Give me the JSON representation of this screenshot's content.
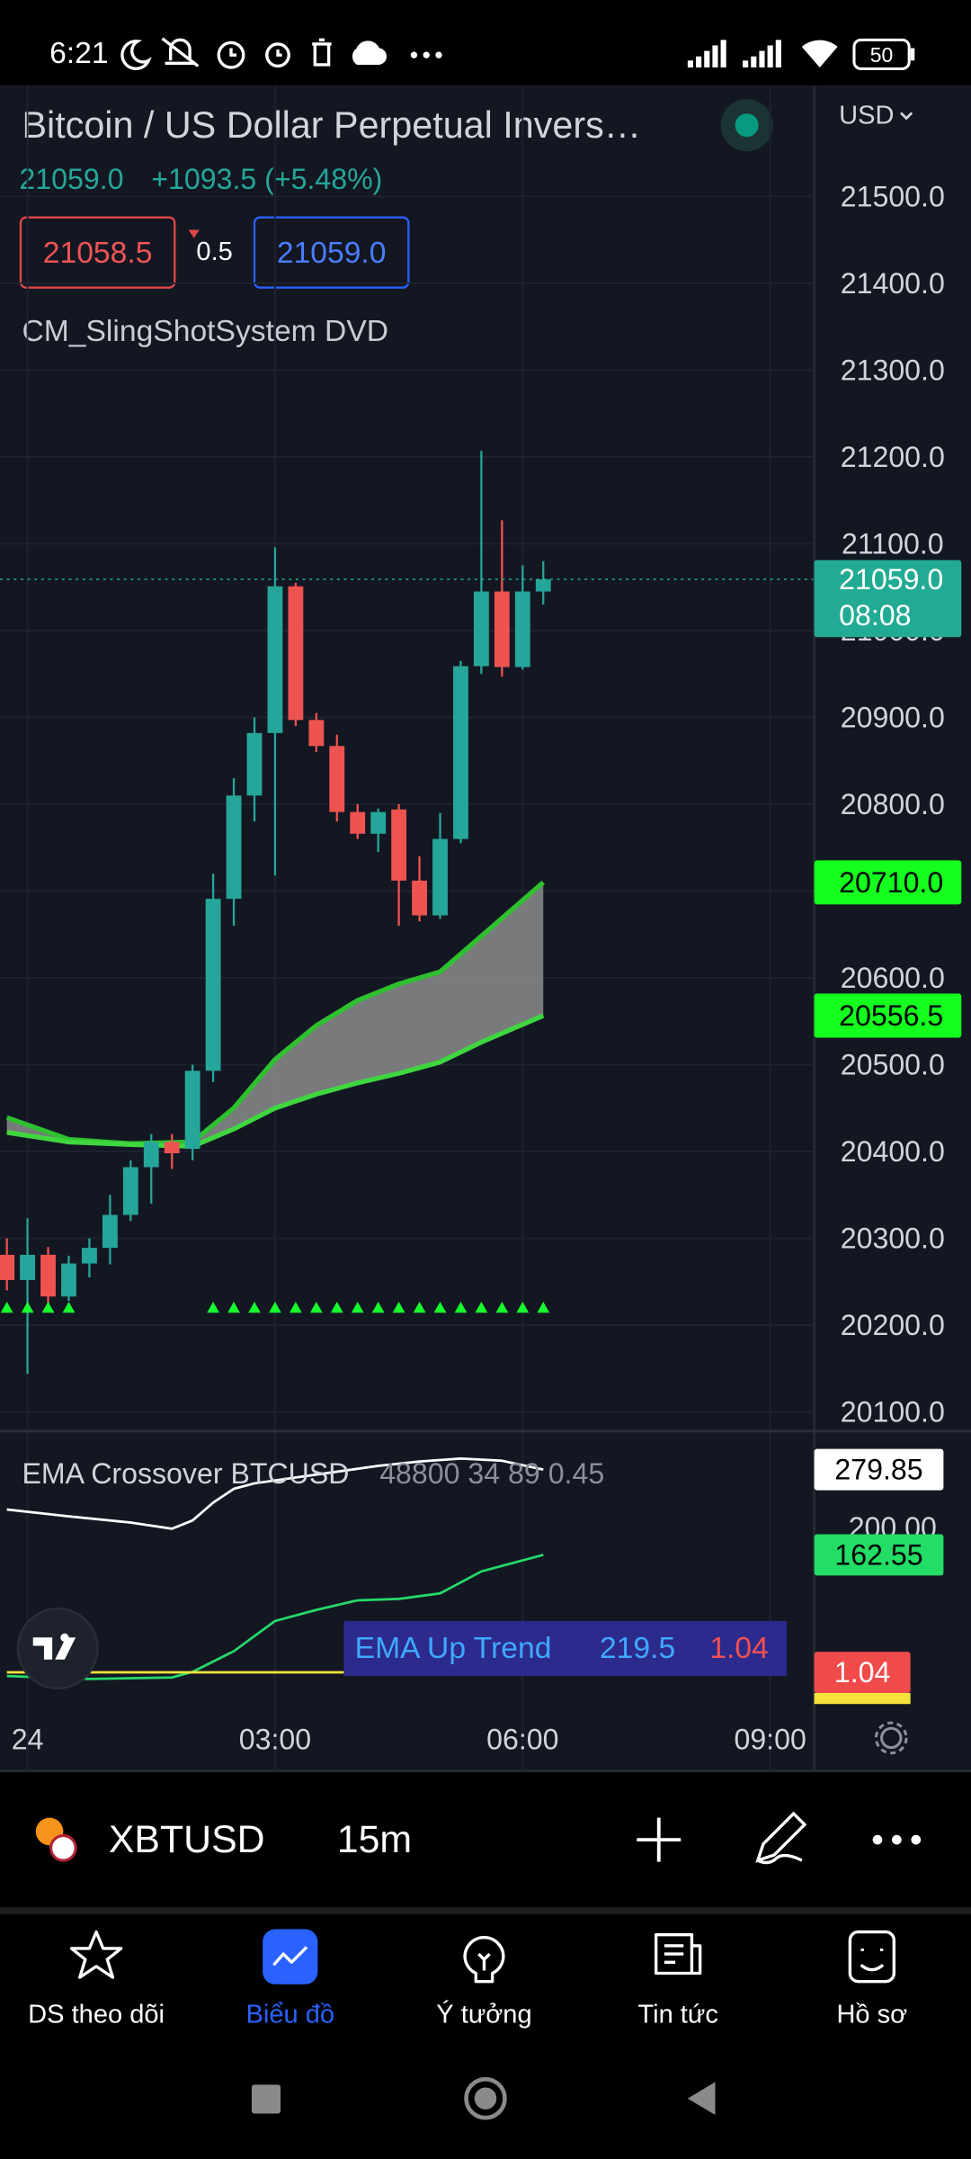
{
  "status_bar": {
    "time": "6:21",
    "battery": "50"
  },
  "header": {
    "title": "Bitcoin / US Dollar Perpetual Invers…",
    "currency": "USD",
    "last_price": "21059.0",
    "change": "+1093.5 (+5.48%)",
    "bid": "21058.5",
    "spread": "0.5",
    "ask": "21059.0",
    "indicator": "CM_SlingShotSystem DVD"
  },
  "chart_data": [
    {
      "type": "candlestick",
      "xlim": [
        -0.25,
        9.25
      ],
      "xticks": [
        {
          "value": 0,
          "label": "24"
        },
        {
          "value": 3,
          "label": "03:00"
        },
        {
          "value": 6,
          "label": "06:00"
        },
        {
          "value": 9,
          "label": "09:00"
        }
      ],
      "ylim": [
        20078,
        21628
      ],
      "yticks": [
        {
          "value": 21500,
          "label": "21500.0"
        },
        {
          "value": 21400,
          "label": "21400.0"
        },
        {
          "value": 21300,
          "label": "21300.0"
        },
        {
          "value": 21200,
          "label": "21200.0"
        },
        {
          "value": 21100,
          "label": "21100.0"
        },
        {
          "value": 21000,
          "label": "21000.0"
        },
        {
          "value": 20900,
          "label": "20900.0"
        },
        {
          "value": 20800,
          "label": "20800.0"
        },
        {
          "value": 20700,
          "label": "20700.0"
        },
        {
          "value": 20600,
          "label": "20600.0"
        },
        {
          "value": 20500,
          "label": "20500.0"
        },
        {
          "value": 20400,
          "label": "20400.0"
        },
        {
          "value": 20300,
          "label": "20300.0"
        },
        {
          "value": 20200,
          "label": "20200.0"
        },
        {
          "value": 20100,
          "label": "20100.0"
        }
      ],
      "grid": true,
      "up_color": "#26a69a",
      "down_color": "#ef5350",
      "x": [
        -0.25,
        0,
        0.25,
        0.5,
        0.75,
        1,
        1.25,
        1.5,
        1.75,
        2,
        2.25,
        2.5,
        2.75,
        3,
        3.25,
        3.5,
        3.75,
        4,
        4.25,
        4.5,
        4.75,
        5,
        5.25,
        5.5,
        5.75,
        6,
        6.25
      ],
      "open": [
        20281,
        20252,
        20281,
        20233,
        20271,
        20289,
        20327,
        20382,
        20411,
        20403,
        20493,
        20691,
        20810,
        20882,
        21051,
        20897,
        20867,
        20791,
        20766,
        20794,
        20712,
        20672,
        20760,
        20959,
        21045,
        20958,
        21045
      ],
      "high": [
        20300,
        20323,
        20290,
        20280,
        20300,
        20350,
        20390,
        20420,
        20420,
        20500,
        20720,
        20830,
        20900,
        21096,
        21055,
        20905,
        20880,
        20800,
        20795,
        20800,
        20740,
        20790,
        20965,
        21207,
        21127,
        21075,
        21080
      ],
      "low": [
        20240,
        20144,
        20225,
        20228,
        20255,
        20270,
        20320,
        20340,
        20380,
        20390,
        20480,
        20660,
        20780,
        20718,
        20890,
        20860,
        20780,
        20760,
        20745,
        20660,
        20665,
        20668,
        20755,
        20950,
        20947,
        20955,
        21030
      ],
      "close": [
        20252,
        20281,
        20233,
        20271,
        20289,
        20327,
        20382,
        20411,
        20398,
        20493,
        20691,
        20810,
        20882,
        21051,
        20897,
        20867,
        20791,
        20766,
        20791,
        20712,
        20672,
        20760,
        20959,
        21045,
        20958,
        21045,
        21059
      ],
      "series": [
        {
          "color": "#2fc02f",
          "x": [
            -0.25,
            0.5,
            1.25,
            2,
            2.5,
            3,
            3.5,
            4,
            4.5,
            5,
            5.5,
            6.25
          ],
          "values": [
            20439,
            20414,
            20409,
            20411,
            20450,
            20506,
            20545,
            20574,
            20593,
            20607,
            20648,
            20710
          ]
        },
        {
          "color": "#3fd63f",
          "x": [
            -0.25,
            0.5,
            1.25,
            2,
            2.5,
            3,
            3.5,
            4,
            4.5,
            5,
            5.5,
            6.25
          ],
          "values": [
            20422,
            20411,
            20408,
            20406,
            20426,
            20450,
            20466,
            20479,
            20490,
            20503,
            20526,
            20556.5
          ]
        }
      ],
      "cloud_color": "#8c8c8c",
      "markers": {
        "color": "#17ff2e",
        "x": [
          -0.25,
          0,
          0.25,
          0.5,
          2.25,
          2.5,
          2.75,
          3,
          3.25,
          3.5,
          3.75,
          4,
          4.25,
          4.5,
          4.75,
          5,
          5.25,
          5.5,
          5.75,
          6,
          6.25
        ]
      },
      "price_labels": [
        {
          "value": 21059,
          "label": "21059.0",
          "countdown": "08:08",
          "color": "#22ab94",
          "text_color": "#ffffff"
        },
        {
          "value": 20710,
          "label": "20710.0",
          "color": "#14ff1e",
          "text_color": "#000000"
        },
        {
          "value": 20556.5,
          "label": "20556.5",
          "color": "#14ff1e",
          "text_color": "#000000"
        }
      ]
    },
    {
      "type": "line",
      "title": "EMA Crossover BTCUSD",
      "params": "48800 34 89 0.45",
      "ylim": [
        -41.8,
        329
      ],
      "yticks": [
        {
          "value": 200,
          "label": "200.00"
        }
      ],
      "series": [
        {
          "color": "#ffffff",
          "label_bg": "#ffffff",
          "label_fg": "#000000",
          "x": [
            -0.25,
            0.5,
            1.25,
            1.75,
            2,
            2.25,
            2.5,
            2.75,
            4.25,
            4.75,
            5.25,
            5.75,
            6.25
          ],
          "values": [
            225,
            215.5,
            207,
            198.5,
            209.9,
            234.4,
            253.4,
            260.9,
            285,
            291,
            295,
            292,
            279.85
          ]
        },
        {
          "color": "#26d96a",
          "label_bg": "#22dd66",
          "label_fg": "#000000",
          "x": [
            -0.25,
            0.75,
            1.75,
            2,
            2.5,
            3,
            3.5,
            4,
            4.5,
            5,
            5.5,
            6.25
          ],
          "values": [
            -4,
            -8,
            -6,
            1.75,
            30.1,
            71.7,
            86.9,
            100.1,
            102,
            109.6,
            139.9,
            162.55
          ]
        },
        {
          "color": "#f5e33c",
          "label_bg": "#f04a4a",
          "label_fg": "#ffffff",
          "x": [
            -0.25,
            6.25
          ],
          "values": [
            1.04,
            1.04
          ]
        }
      ],
      "info_box": {
        "label": "EMA Up Trend",
        "values": [
          219.5,
          1.04
        ],
        "background": "#2d2a8e",
        "label_color": "#3fa9ff",
        "value_colors": [
          "#3fa9ff",
          "#f25050"
        ]
      }
    }
  ],
  "toolbar": {
    "symbol": "XBTUSD",
    "interval": "15m"
  },
  "nav": {
    "active": 1,
    "items": [
      "DS theo dõi",
      "Biểu đồ",
      "Ý tưởng",
      "Tin tức",
      "Hồ sơ"
    ]
  }
}
